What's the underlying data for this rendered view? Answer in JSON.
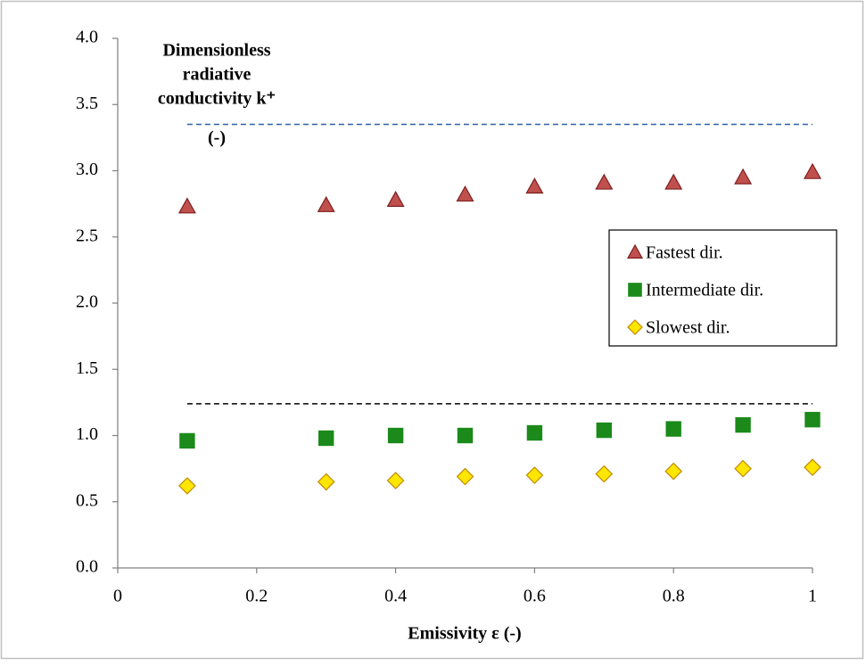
{
  "chart_data": {
    "type": "scatter",
    "ylabel": [
      "Dimensionless",
      "radiative",
      "conductivity k⁺",
      "(-)"
    ],
    "xlabel": "Emissivity ε (-)",
    "x": [
      0.1,
      0.3,
      0.4,
      0.5,
      0.6,
      0.7,
      0.8,
      0.9,
      1
    ],
    "series": [
      {
        "name": "Fastest dir.",
        "marker": "triangle",
        "color": "#c0504d",
        "stroke": "#7f1f1f",
        "values": [
          2.73,
          2.74,
          2.78,
          2.82,
          2.88,
          2.91,
          2.91,
          2.95,
          2.99
        ]
      },
      {
        "name": "Intermediate dir.",
        "marker": "square",
        "color": "#1b8a1b",
        "stroke": "#1b8a1b",
        "values": [
          0.96,
          0.98,
          1.0,
          1.0,
          1.02,
          1.04,
          1.05,
          1.08,
          1.12
        ]
      },
      {
        "name": "Slowest dir.",
        "marker": "diamond",
        "color": "#ffe600",
        "stroke": "#c08a00",
        "values": [
          0.62,
          0.65,
          0.66,
          0.69,
          0.7,
          0.71,
          0.73,
          0.75,
          0.76
        ]
      }
    ],
    "reference_lines": [
      {
        "y": 3.35,
        "x": [
          0.1,
          1
        ],
        "color": "#2f5fa8"
      },
      {
        "y": 1.24,
        "x": [
          0.1,
          1
        ],
        "color": "#000000"
      }
    ],
    "xlim": [
      0,
      1
    ],
    "xticks": [
      0,
      0.2,
      0.4,
      0.6,
      0.8,
      1
    ],
    "ylim": [
      0,
      4
    ],
    "yticks": [
      {
        "value": 0,
        "label": "0.0"
      },
      0.5,
      {
        "value": 1,
        "label": "1.0"
      },
      1.5,
      {
        "value": 2,
        "label": "2.0"
      },
      2.5,
      {
        "value": 3,
        "label": "3.0"
      },
      3.5,
      {
        "value": 4,
        "label": "4.0"
      }
    ],
    "grid": false,
    "legend": "right"
  }
}
